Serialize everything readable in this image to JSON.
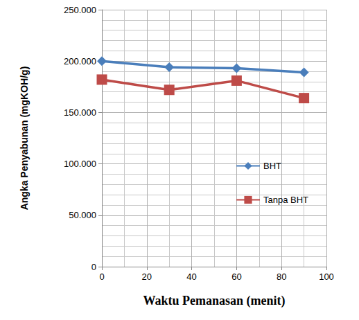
{
  "chart_data": {
    "type": "line",
    "x_label": "Waktu Pemanasan (menit)",
    "y_label": "Angka Penyabunan (mgKOH/g)",
    "x": [
      0,
      30,
      60,
      90
    ],
    "series": [
      {
        "name": "BHT",
        "color": "#4a7ebb",
        "marker": "diamond",
        "values": [
          200,
          194,
          193,
          189
        ]
      },
      {
        "name": "Tanpa BHT",
        "color": "#be4b48",
        "marker": "square",
        "values": [
          182,
          172,
          181,
          164
        ]
      }
    ],
    "xlim": [
      0,
      100
    ],
    "xticks": [
      0,
      20,
      40,
      60,
      80,
      100
    ],
    "ylim": [
      0,
      250
    ],
    "yticks": [
      0,
      {
        "value": 50,
        "label": "50.000"
      },
      {
        "value": 100,
        "label": "100.000"
      },
      {
        "value": 150,
        "label": "150.000"
      },
      {
        "value": 200,
        "label": "200.000"
      },
      {
        "value": 250,
        "label": "250.000"
      }
    ],
    "grid": true,
    "legend": "lower right"
  }
}
